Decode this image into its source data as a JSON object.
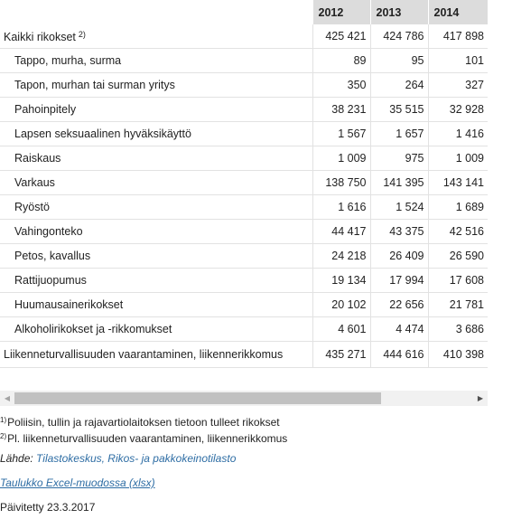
{
  "table": {
    "headers": [
      "2012",
      "2013",
      "2014"
    ],
    "rows": [
      {
        "label": "Kaikki rikokset",
        "note": "2)",
        "values": [
          "425 421",
          "424 786",
          "417 898"
        ]
      },
      {
        "label": "Tappo, murha, surma",
        "values": [
          "89",
          "95",
          "101"
        ]
      },
      {
        "label": "Tapon, murhan tai surman yritys",
        "values": [
          "350",
          "264",
          "327"
        ]
      },
      {
        "label": "Pahoinpitely",
        "values": [
          "38 231",
          "35 515",
          "32 928"
        ]
      },
      {
        "label": "Lapsen seksuaalinen hyväksikäyttö",
        "values": [
          "1 567",
          "1 657",
          "1 416"
        ]
      },
      {
        "label": "Raiskaus",
        "values": [
          "1 009",
          "975",
          "1 009"
        ]
      },
      {
        "label": "Varkaus",
        "values": [
          "138 750",
          "141 395",
          "143 141"
        ]
      },
      {
        "label": "Ryöstö",
        "values": [
          "1 616",
          "1 524",
          "1 689"
        ]
      },
      {
        "label": "Vahingonteko",
        "values": [
          "44 417",
          "43 375",
          "42 516"
        ]
      },
      {
        "label": "Petos, kavallus",
        "values": [
          "24 218",
          "26 409",
          "26 590"
        ]
      },
      {
        "label": "Rattijuopumus",
        "values": [
          "19 134",
          "17 994",
          "17 608"
        ]
      },
      {
        "label": "Huumausainerikokset",
        "values": [
          "20 102",
          "22 656",
          "21 781"
        ]
      },
      {
        "label": "Alkoholirikokset ja -rikkomukset",
        "values": [
          "4 601",
          "4 474",
          "3 686"
        ]
      },
      {
        "label": "Liikenneturvallisuuden vaarantaminen, liikennerikkomus",
        "values": [
          "435 271",
          "444 616",
          "410 398"
        ]
      }
    ]
  },
  "footnotes": [
    {
      "mark": "1)",
      "text": "Poliisin, tullin ja rajavartiolaitoksen tietoon tulleet rikokset"
    },
    {
      "mark": "2)",
      "text": "Pl. liikenneturvallisuuden vaarantaminen, liikennerikkomus"
    }
  ],
  "source": {
    "prefix": "Lähde: ",
    "link": "Tilastokeskus, Rikos- ja pakkokeinotilasto"
  },
  "excel_link": "Taulukko Excel-muodossa (xlsx)",
  "updated": "Päivitetty 23.3.2017",
  "scrollbar": {
    "left_icon": "arrow-left-icon",
    "right_icon": "arrow-right-icon"
  }
}
